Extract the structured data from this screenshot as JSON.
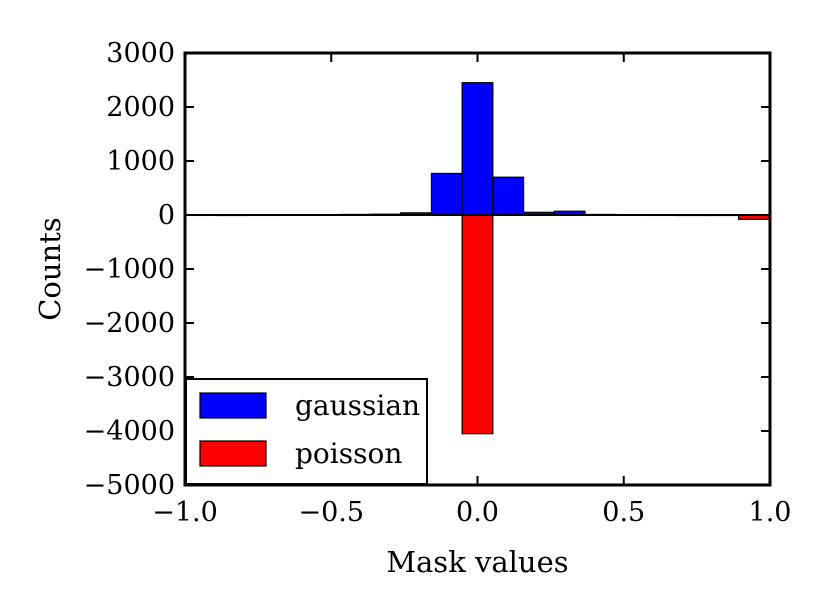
{
  "chart_data": {
    "type": "bar",
    "xlabel": "Mask values",
    "ylabel": "Counts",
    "xlim": [
      -1.0,
      1.0
    ],
    "ylim": [
      -5000,
      3000
    ],
    "xticks": [
      -1.0,
      -0.5,
      0.0,
      0.5,
      1.0
    ],
    "xtick_labels": [
      "−1.0",
      "−0.5",
      "0.0",
      "0.5",
      "1.0"
    ],
    "yticks": [
      3000,
      2000,
      1000,
      0,
      -1000,
      -2000,
      -3000,
      -4000,
      -5000
    ],
    "ytick_labels": [
      "3000",
      "2000",
      "1000",
      "0",
      "−1000",
      "−2000",
      "−3000",
      "−4000",
      "−5000"
    ],
    "grid": false,
    "legend_position": "lower-left",
    "bin_width": 0.105,
    "series": [
      {
        "name": "gaussian",
        "color": "#0000ff",
        "bins": [
          {
            "x": -0.945,
            "value": 3
          },
          {
            "x": -0.84,
            "value": 2
          },
          {
            "x": -0.735,
            "value": 3
          },
          {
            "x": -0.63,
            "value": 4
          },
          {
            "x": -0.525,
            "value": 6
          },
          {
            "x": -0.42,
            "value": 10
          },
          {
            "x": -0.315,
            "value": 15
          },
          {
            "x": -0.21,
            "value": 40
          },
          {
            "x": -0.105,
            "value": 770
          },
          {
            "x": 0.0,
            "value": 2450
          },
          {
            "x": 0.105,
            "value": 700
          },
          {
            "x": 0.21,
            "value": 50
          },
          {
            "x": 0.315,
            "value": 70
          },
          {
            "x": 0.42,
            "value": 10
          },
          {
            "x": 0.525,
            "value": 5
          },
          {
            "x": 0.63,
            "value": 3
          },
          {
            "x": 0.735,
            "value": 2
          },
          {
            "x": 0.84,
            "value": 2
          },
          {
            "x": 0.945,
            "value": 2
          }
        ]
      },
      {
        "name": "poisson",
        "color": "#ff0000",
        "bins": [
          {
            "x": 0.0,
            "value": -4050
          },
          {
            "x": 0.945,
            "value": -80
          }
        ]
      }
    ]
  }
}
